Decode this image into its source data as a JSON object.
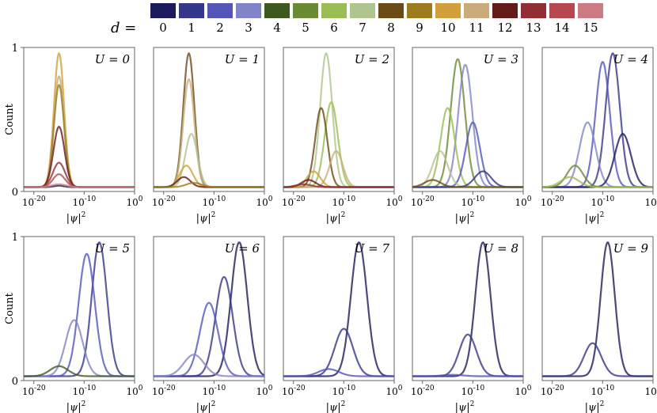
{
  "legend": {
    "label": "d =",
    "items": [
      {
        "label": "0",
        "color": "#1c1c5c"
      },
      {
        "label": "1",
        "color": "#34378a"
      },
      {
        "label": "2",
        "color": "#5356b8"
      },
      {
        "label": "3",
        "color": "#8184c8"
      },
      {
        "label": "4",
        "color": "#3d5a1e"
      },
      {
        "label": "5",
        "color": "#6a8a33"
      },
      {
        "label": "6",
        "color": "#9bbd55"
      },
      {
        "label": "7",
        "color": "#b0c48f"
      },
      {
        "label": "8",
        "color": "#6b4b14"
      },
      {
        "label": "9",
        "color": "#9c7c1d"
      },
      {
        "label": "10",
        "color": "#d1a03a"
      },
      {
        "label": "11",
        "color": "#c9ac7a"
      },
      {
        "label": "12",
        "color": "#661b1b"
      },
      {
        "label": "13",
        "color": "#922f35"
      },
      {
        "label": "14",
        "color": "#b74750"
      },
      {
        "label": "15",
        "color": "#cc7b82"
      }
    ]
  },
  "chart_data": {
    "type": "line",
    "xlabel": "|ψ|²",
    "ylabel": "Count",
    "xscale": "log",
    "xlim_exp": [
      -22,
      0
    ],
    "x_ticks": [
      {
        "exp": -20,
        "label": "10^{-20}"
      },
      {
        "exp": -10,
        "label": "10^{-10}"
      },
      {
        "exp": 0,
        "label": "10^{0}"
      }
    ],
    "ylim": [
      0,
      1
    ],
    "y_ticks": [
      "0",
      "1"
    ],
    "panels": [
      {
        "title": "U = 0",
        "series": [
          {
            "d": 0,
            "peak": 0.04,
            "center": -15,
            "width": 1.0
          },
          {
            "d": 10,
            "peak": 0.96,
            "center": -15,
            "width": 1.0
          },
          {
            "d": 11,
            "peak": 0.8,
            "center": -15,
            "width": 1.0
          },
          {
            "d": 9,
            "peak": 0.74,
            "center": -15,
            "width": 1.0
          },
          {
            "d": 12,
            "peak": 0.45,
            "center": -15,
            "width": 1.1
          },
          {
            "d": 13,
            "peak": 0.2,
            "center": -15,
            "width": 1.2
          },
          {
            "d": 14,
            "peak": 0.12,
            "center": -15,
            "width": 1.2
          },
          {
            "d": 15,
            "peak": 0.05,
            "center": -15,
            "width": 1.4
          }
        ]
      },
      {
        "title": "U = 1",
        "series": [
          {
            "d": 8,
            "peak": 0.96,
            "center": -15,
            "width": 1.1
          },
          {
            "d": 11,
            "peak": 0.78,
            "center": -15,
            "width": 1.1
          },
          {
            "d": 7,
            "peak": 0.4,
            "center": -14.5,
            "width": 1.2
          },
          {
            "d": 10,
            "peak": 0.18,
            "center": -15.5,
            "width": 1.3
          },
          {
            "d": 12,
            "peak": 0.1,
            "center": -16,
            "width": 1.3
          },
          {
            "d": 9,
            "peak": 0.06,
            "center": -14,
            "width": 1.5
          }
        ]
      },
      {
        "title": "U = 2",
        "series": [
          {
            "d": 7,
            "peak": 0.96,
            "center": -13.5,
            "width": 1.2
          },
          {
            "d": 6,
            "peak": 0.62,
            "center": -12.5,
            "width": 1.3
          },
          {
            "d": 8,
            "peak": 0.58,
            "center": -14.5,
            "width": 1.2
          },
          {
            "d": 11,
            "peak": 0.28,
            "center": -11.5,
            "width": 1.3
          },
          {
            "d": 10,
            "peak": 0.14,
            "center": -16,
            "width": 1.3
          },
          {
            "d": 12,
            "peak": 0.08,
            "center": -17,
            "width": 1.4
          },
          {
            "d": 13,
            "peak": 0.05,
            "center": -18,
            "width": 1.5
          }
        ]
      },
      {
        "title": "U = 3",
        "series": [
          {
            "d": 5,
            "peak": 0.92,
            "center": -13,
            "width": 1.4
          },
          {
            "d": 3,
            "peak": 0.88,
            "center": -11.5,
            "width": 1.4
          },
          {
            "d": 6,
            "peak": 0.58,
            "center": -15,
            "width": 1.4
          },
          {
            "d": 2,
            "peak": 0.48,
            "center": -10,
            "width": 1.4
          },
          {
            "d": 7,
            "peak": 0.28,
            "center": -16.5,
            "width": 1.5
          },
          {
            "d": 1,
            "peak": 0.14,
            "center": -8,
            "width": 1.6
          },
          {
            "d": 8,
            "peak": 0.08,
            "center": -18,
            "width": 1.6
          }
        ]
      },
      {
        "title": "U = 4",
        "series": [
          {
            "d": 1,
            "peak": 0.96,
            "center": -8,
            "width": 1.4
          },
          {
            "d": 2,
            "peak": 0.9,
            "center": -10,
            "width": 1.4
          },
          {
            "d": 3,
            "peak": 0.48,
            "center": -13,
            "width": 1.6
          },
          {
            "d": 0,
            "peak": 0.4,
            "center": -6,
            "width": 1.6
          },
          {
            "d": 5,
            "peak": 0.18,
            "center": -15.5,
            "width": 1.6
          },
          {
            "d": 6,
            "peak": 0.1,
            "center": -16.5,
            "width": 1.8
          }
        ]
      },
      {
        "title": "U = 5",
        "series": [
          {
            "d": 1,
            "peak": 0.96,
            "center": -7,
            "width": 1.5
          },
          {
            "d": 2,
            "peak": 0.88,
            "center": -9.5,
            "width": 1.6
          },
          {
            "d": 3,
            "peak": 0.42,
            "center": -12,
            "width": 1.7
          },
          {
            "d": 4,
            "peak": 0.1,
            "center": -15,
            "width": 1.8
          }
        ]
      },
      {
        "title": "U = 6",
        "series": [
          {
            "d": 0,
            "peak": 0.96,
            "center": -5,
            "width": 1.6
          },
          {
            "d": 1,
            "peak": 0.72,
            "center": -8,
            "width": 1.7
          },
          {
            "d": 2,
            "peak": 0.54,
            "center": -11,
            "width": 1.8
          },
          {
            "d": 3,
            "peak": 0.18,
            "center": -14,
            "width": 2.0
          }
        ]
      },
      {
        "title": "U = 7",
        "series": [
          {
            "d": 0,
            "peak": 0.96,
            "center": -7,
            "width": 1.6
          },
          {
            "d": 1,
            "peak": 0.36,
            "center": -10,
            "width": 1.8
          },
          {
            "d": 2,
            "peak": 0.08,
            "center": -13,
            "width": 2.0
          }
        ]
      },
      {
        "title": "U = 8",
        "series": [
          {
            "d": 0,
            "peak": 0.96,
            "center": -8,
            "width": 1.5
          },
          {
            "d": 1,
            "peak": 0.32,
            "center": -11,
            "width": 1.7
          },
          {
            "d": 2,
            "peak": 0.04,
            "center": -14,
            "width": 2.0
          }
        ]
      },
      {
        "title": "U = 9",
        "series": [
          {
            "d": 0,
            "peak": 0.96,
            "center": -9,
            "width": 1.4
          },
          {
            "d": 1,
            "peak": 0.26,
            "center": -12,
            "width": 1.7
          }
        ]
      }
    ]
  }
}
